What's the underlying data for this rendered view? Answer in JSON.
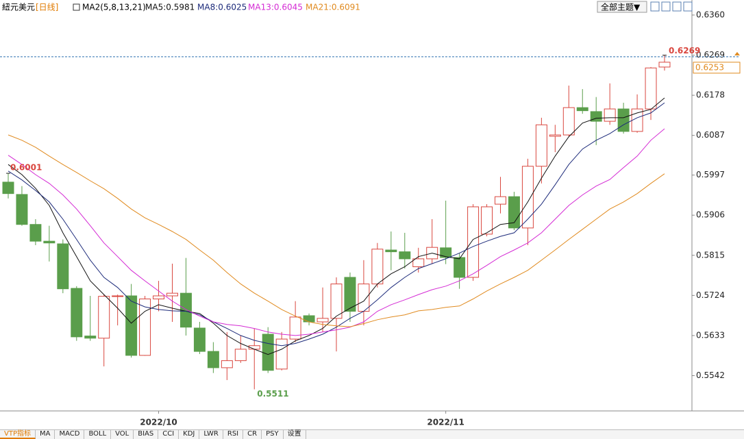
{
  "chart_data": {
    "type": "candlestick",
    "title": "紐元美元",
    "subtitle": "[日线]",
    "indicator": "MA2(5,8,13,21)",
    "categories": [
      null,
      null,
      null,
      null,
      null,
      null,
      null,
      null,
      null,
      null,
      null,
      "2022/10",
      null,
      null,
      null,
      null,
      null,
      null,
      null,
      null,
      null,
      null,
      null,
      null,
      null,
      null,
      null,
      null,
      null,
      null,
      null,
      null,
      "2022/11",
      null,
      null,
      null,
      null,
      null,
      null,
      null,
      null,
      null,
      null,
      null,
      null,
      null,
      null,
      null,
      null
    ],
    "open": [
      0.5981,
      0.5953,
      0.5885,
      0.5847,
      0.5841,
      0.574,
      0.5632,
      0.5627,
      0.5722,
      0.5723,
      0.5588,
      0.5716,
      0.5723,
      0.5729,
      0.565,
      0.5597,
      0.556,
      0.5576,
      0.5602,
      0.5636,
      0.5557,
      0.5625,
      0.5678,
      0.5664,
      0.5672,
      0.5765,
      0.5688,
      0.575,
      0.5827,
      0.5823,
      0.5789,
      0.5807,
      0.5832,
      0.581,
      0.5765,
      0.5863,
      0.5931,
      0.5948,
      0.5877,
      0.6017,
      0.6085,
      0.6088,
      0.615,
      0.6141,
      0.6119,
      0.6147,
      0.6096,
      0.6147,
      0.6242
    ],
    "high": [
      0.6001,
      0.5972,
      0.5897,
      0.5882,
      0.5851,
      0.5745,
      0.5723,
      0.5726,
      0.5726,
      0.575,
      0.5723,
      0.5757,
      0.5796,
      0.5809,
      0.5664,
      0.5618,
      0.5641,
      0.5633,
      0.5649,
      0.5652,
      0.5641,
      0.5711,
      0.5683,
      0.5742,
      0.5765,
      0.5776,
      0.5804,
      0.5843,
      0.5869,
      0.5866,
      0.5832,
      0.5897,
      0.5939,
      0.582,
      0.5931,
      0.5931,
      0.5993,
      0.5959,
      0.6034,
      0.6127,
      0.6111,
      0.62,
      0.6192,
      0.6174,
      0.6205,
      0.6161,
      0.618,
      0.6242,
      0.6269
    ],
    "low": [
      0.5944,
      0.5882,
      0.5838,
      0.5801,
      0.5729,
      0.5621,
      0.5621,
      0.5563,
      0.5656,
      0.5583,
      0.5587,
      0.5688,
      0.5664,
      0.5633,
      0.5591,
      0.5548,
      0.5532,
      0.5571,
      0.5511,
      0.5548,
      0.5554,
      0.5618,
      0.5656,
      0.5641,
      0.5597,
      0.5664,
      0.5656,
      0.5742,
      0.5781,
      0.5785,
      0.5776,
      0.5796,
      0.5795,
      0.5739,
      0.5757,
      0.5858,
      0.591,
      0.5872,
      0.5838,
      0.5978,
      0.6049,
      0.6085,
      0.6136,
      0.6065,
      0.6111,
      0.6091,
      0.6093,
      0.6122,
      0.6234
    ],
    "close": [
      0.5955,
      0.5885,
      0.5847,
      0.5843,
      0.5739,
      0.563,
      0.5627,
      0.5722,
      0.5723,
      0.5588,
      0.5716,
      0.5723,
      0.5729,
      0.5652,
      0.5597,
      0.556,
      0.5576,
      0.5602,
      0.561,
      0.5554,
      0.5625,
      0.5675,
      0.5664,
      0.5672,
      0.575,
      0.5688,
      0.575,
      0.5829,
      0.5823,
      0.5807,
      0.5807,
      0.5833,
      0.581,
      0.5765,
      0.5925,
      0.5925,
      0.5948,
      0.5877,
      0.6017,
      0.6111,
      0.6088,
      0.615,
      0.6143,
      0.6119,
      0.6147,
      0.6096,
      0.6147,
      0.624,
      0.6253
    ],
    "up_color": "#d9463e",
    "down_color": "#5a9e4b",
    "series": [
      {
        "name": "MA5:0.5981",
        "color": "#111111",
        "values": [
          0.6021,
          0.5998,
          0.5967,
          0.5928,
          0.5866,
          0.5812,
          0.5757,
          0.5726,
          0.5695,
          0.5661,
          0.5688,
          0.5703,
          0.5695,
          0.5688,
          0.5683,
          0.5661,
          0.5633,
          0.5615,
          0.5602,
          0.559,
          0.5602,
          0.5621,
          0.5633,
          0.5649,
          0.5677,
          0.5695,
          0.5711,
          0.575,
          0.5773,
          0.5789,
          0.5812,
          0.582,
          0.5812,
          0.5807,
          0.5851,
          0.5866,
          0.5885,
          0.5889,
          0.5936,
          0.599,
          0.604,
          0.6084,
          0.6115,
          0.6126,
          0.6127,
          0.6127,
          0.6138,
          0.6146,
          0.6172
        ]
      },
      {
        "name": "MA8:0.6025",
        "color": "#1c2a7a",
        "values": [
          0.6006,
          0.5986,
          0.5962,
          0.5936,
          0.5897,
          0.5851,
          0.5804,
          0.5765,
          0.5742,
          0.5711,
          0.5698,
          0.5692,
          0.5689,
          0.5688,
          0.568,
          0.5664,
          0.5649,
          0.5633,
          0.5622,
          0.5615,
          0.561,
          0.5615,
          0.5625,
          0.5636,
          0.5652,
          0.5672,
          0.5688,
          0.5714,
          0.5742,
          0.5765,
          0.5785,
          0.5796,
          0.5807,
          0.582,
          0.5835,
          0.5847,
          0.5858,
          0.5866,
          0.5897,
          0.5931,
          0.5975,
          0.6021,
          0.6056,
          0.6076,
          0.6091,
          0.6111,
          0.6127,
          0.6138,
          0.6161
        ]
      },
      {
        "name": "MA13:0.6045",
        "color": "#d42ad4",
        "values": [
          0.6042,
          0.6021,
          0.5998,
          0.5978,
          0.5952,
          0.592,
          0.5882,
          0.5843,
          0.5812,
          0.5781,
          0.5757,
          0.5734,
          0.5711,
          0.5692,
          0.5677,
          0.5664,
          0.5658,
          0.5655,
          0.5649,
          0.5641,
          0.5636,
          0.5633,
          0.5636,
          0.5641,
          0.5646,
          0.5652,
          0.5664,
          0.5688,
          0.5703,
          0.5714,
          0.5726,
          0.5737,
          0.5745,
          0.5757,
          0.5773,
          0.5792,
          0.5812,
          0.5827,
          0.5843,
          0.5866,
          0.5897,
          0.5928,
          0.5952,
          0.5972,
          0.5987,
          0.6014,
          0.604,
          0.6076,
          0.6102
        ]
      },
      {
        "name": "MA21:0.6091",
        "color": "#e08a1e",
        "values": [
          0.6088,
          0.6076,
          0.606,
          0.604,
          0.6021,
          0.6003,
          0.5984,
          0.5966,
          0.5944,
          0.592,
          0.59,
          0.5885,
          0.5869,
          0.5851,
          0.5827,
          0.5804,
          0.5776,
          0.575,
          0.5729,
          0.5711,
          0.5692,
          0.5677,
          0.5664,
          0.5658,
          0.5655,
          0.5653,
          0.566,
          0.5669,
          0.5675,
          0.568,
          0.5689,
          0.5692,
          0.5697,
          0.57,
          0.5716,
          0.5734,
          0.575,
          0.5765,
          0.5781,
          0.5804,
          0.5827,
          0.5851,
          0.5874,
          0.5897,
          0.592,
          0.5936,
          0.5955,
          0.5978,
          0.6
        ]
      }
    ],
    "ylim": [
      0.5462,
      0.6391
    ],
    "yticks": [
      {
        "value": 0.636,
        "label": "0.6360"
      },
      0.6269,
      0.6178,
      0.6087,
      0.5997,
      0.5906,
      0.5815,
      0.5724,
      0.5633,
      0.5542
    ],
    "grid": false
  },
  "toolbar": {
    "theme_button": "全部主题▼"
  },
  "tabs": [
    "VTP指标",
    "MA",
    "MACD",
    "BOLL",
    "VOL",
    "BIAS",
    "CCI",
    "KDJ",
    "LWR",
    "RSI",
    "CR",
    "PSY",
    "设置"
  ]
}
